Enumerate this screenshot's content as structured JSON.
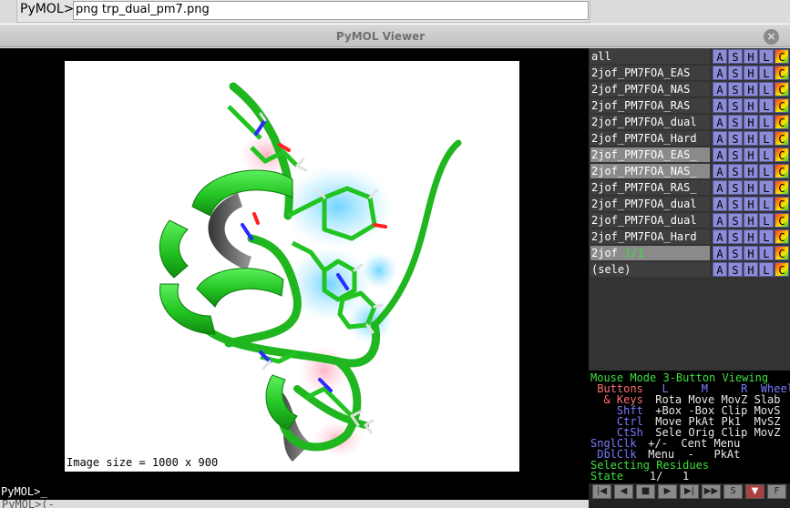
{
  "command_bar": {
    "prompt": "PyMOL>",
    "input_value": "png trp_dual_pm7.png"
  },
  "window": {
    "title": "PyMOL Viewer",
    "close_glyph": "×"
  },
  "viewport": {
    "image_size_text": "Image size = 1000 x 900"
  },
  "objects": [
    {
      "name": "all",
      "selected": false
    },
    {
      "name": "2jof_PM7FOA_EAS",
      "selected": false
    },
    {
      "name": "2jof_PM7FOA_NAS",
      "selected": false
    },
    {
      "name": "2jof_PM7FOA_RAS",
      "selected": false
    },
    {
      "name": "2jof_PM7FOA_dual",
      "selected": false
    },
    {
      "name": "2jof_PM7FOA_Hard",
      "selected": false
    },
    {
      "name": "2jof_PM7FOA_EAS_",
      "selected": true
    },
    {
      "name": "2jof_PM7FOA_NAS_",
      "selected": true
    },
    {
      "name": "2jof_PM7FOA_RAS_",
      "selected": false
    },
    {
      "name": "2jof_PM7FOA_dual",
      "selected": false
    },
    {
      "name": "2jof_PM7FOA_dual",
      "selected": false
    },
    {
      "name": "2jof_PM7FOA_Hard",
      "selected": false
    },
    {
      "name": "2jof",
      "state": "1/1",
      "selected": true
    },
    {
      "name": "(sele)",
      "selected": false
    }
  ],
  "object_buttons": [
    "A",
    "S",
    "H",
    "L",
    "C"
  ],
  "mouse_panel": {
    "line1": "Mouse Mode 3-Button Viewing",
    "line2_a": " Buttons",
    "line2_b": "  L     M     R  Wheel",
    "line3_a": "  & Keys",
    "line3_b": " Rota Move MovZ Slab",
    "line4_a": "    Shft",
    "line4_b": " +Box -Box Clip MovS",
    "line5_a": "    Ctrl",
    "line5_b": " Move PkAt Pk1  MvSZ",
    "line6_a": "    CtSh",
    "line6_b": " Sele Orig Clip MovZ",
    "line7_a": "SnglClk",
    "line7_b": " +/-  Cent Menu",
    "line8_a": " DblClk",
    "line8_b": " Menu  -   PkAt",
    "line9": "Selecting Residues",
    "line10_a": "State",
    "line10_b": "    1/   1"
  },
  "cmdline": {
    "text": "PyMOL>_"
  },
  "bottom_hint": "PyMOL>(-",
  "movie_controls": [
    "|◀",
    "◀",
    "■",
    "▶",
    "▶|",
    "▶▶",
    "S",
    "▼",
    "F"
  ],
  "colors": {
    "cartoon": "#2bd42b",
    "nitrogen": "#2a2aff",
    "oxygen": "#ff2020",
    "hydrogen": "#e6e6e6",
    "surface_blue": "#4fc8ff",
    "surface_pink": "#ff9fb0"
  }
}
